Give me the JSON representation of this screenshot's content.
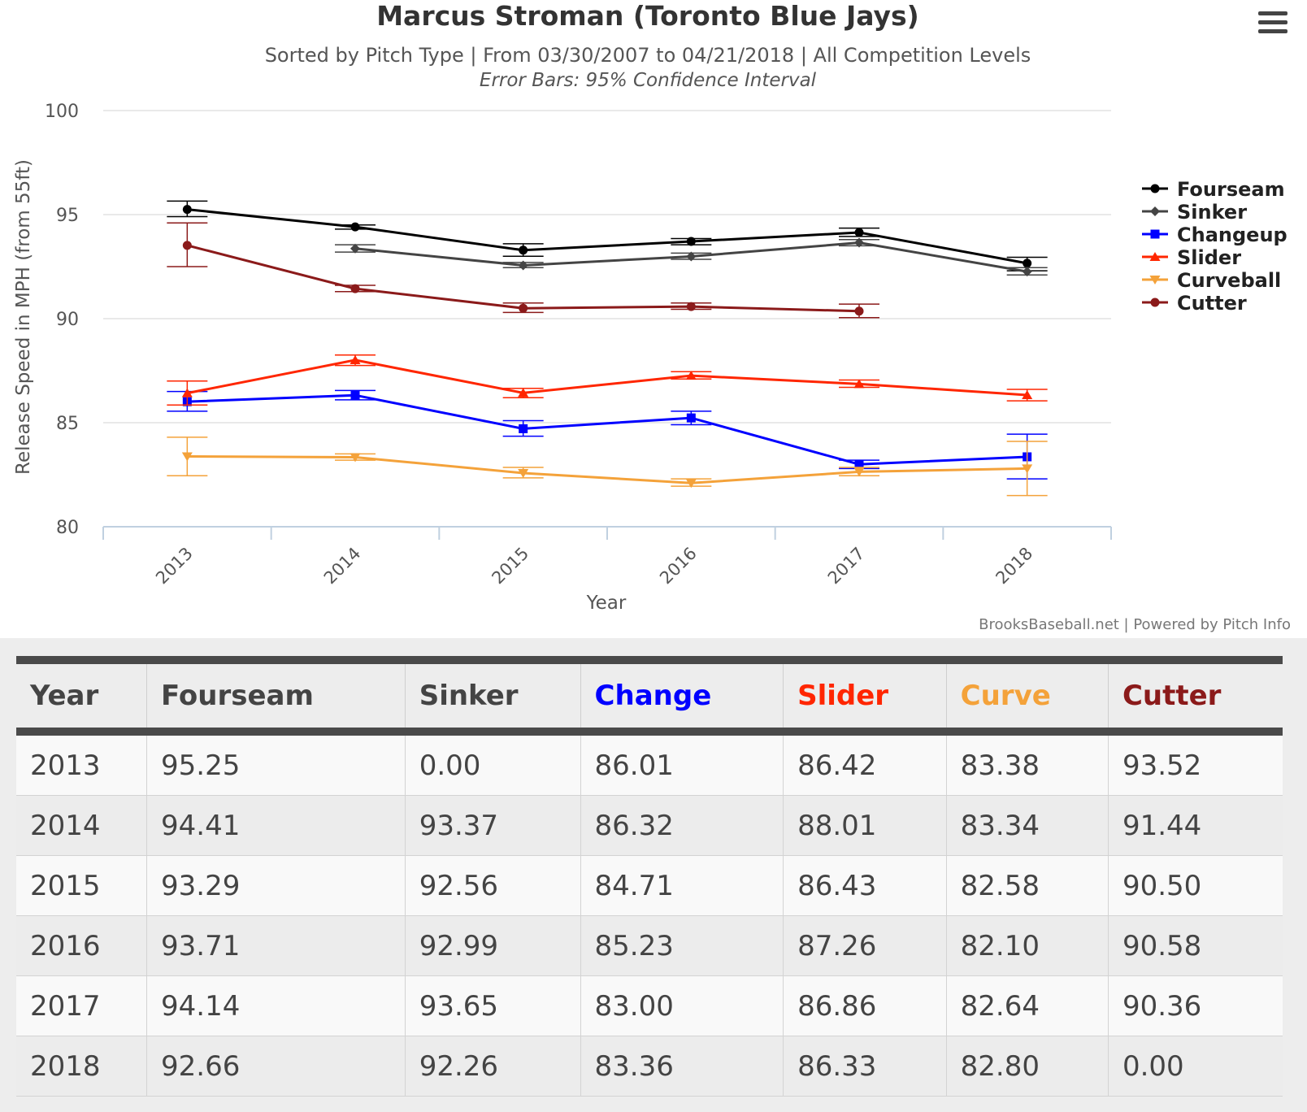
{
  "chart_data": {
    "type": "line",
    "title": "Marcus Stroman (Toronto Blue Jays)",
    "subtitle": "Sorted by Pitch Type | From 03/30/2007 to 04/21/2018 | All Competition Levels",
    "subtitle2": "Error Bars: 95% Confidence Interval",
    "xlabel": "Year",
    "ylabel": "Release Speed in MPH (from 55ft)",
    "credits": "BrooksBaseball.net | Powered by Pitch Info",
    "categories": [
      "2013",
      "2014",
      "2015",
      "2016",
      "2017",
      "2018"
    ],
    "yticks": [
      "80",
      "85",
      "90",
      "95",
      "100"
    ],
    "ylim": [
      80,
      100
    ],
    "grid": true,
    "legend_position": "right",
    "series": [
      {
        "name": "Fourseam",
        "color": "#000000",
        "marker": "circle",
        "values": [
          95.25,
          94.41,
          93.29,
          93.71,
          94.14,
          92.66
        ],
        "error_low": [
          94.9,
          94.3,
          93.0,
          93.55,
          93.95,
          92.3
        ],
        "error_high": [
          95.65,
          94.5,
          93.6,
          93.85,
          94.35,
          92.95
        ]
      },
      {
        "name": "Sinker",
        "color": "#444444",
        "marker": "diamond",
        "values": [
          null,
          93.37,
          92.56,
          92.99,
          93.65,
          92.26
        ],
        "error_low": [
          null,
          93.2,
          92.45,
          92.85,
          93.5,
          92.1
        ],
        "error_high": [
          null,
          93.55,
          92.7,
          93.15,
          93.8,
          92.45
        ]
      },
      {
        "name": "Changeup",
        "color": "#0000ff",
        "marker": "square",
        "values": [
          86.01,
          86.32,
          84.71,
          85.23,
          83.0,
          83.36
        ],
        "error_low": [
          85.55,
          86.1,
          84.35,
          84.9,
          82.8,
          82.3
        ],
        "error_high": [
          86.5,
          86.55,
          85.1,
          85.55,
          83.2,
          84.45
        ]
      },
      {
        "name": "Slider",
        "color": "#ff2600",
        "marker": "triangle",
        "values": [
          86.42,
          88.01,
          86.43,
          87.26,
          86.86,
          86.33
        ],
        "error_low": [
          85.85,
          87.75,
          86.2,
          87.1,
          86.7,
          86.05
        ],
        "error_high": [
          87.0,
          88.25,
          86.65,
          87.45,
          87.05,
          86.6
        ]
      },
      {
        "name": "Curveball",
        "color": "#f4a23a",
        "marker": "triangle-down",
        "values": [
          83.38,
          83.34,
          82.58,
          82.1,
          82.64,
          82.8
        ],
        "error_low": [
          82.45,
          83.2,
          82.35,
          81.95,
          82.45,
          81.5
        ],
        "error_high": [
          84.3,
          83.5,
          82.85,
          82.3,
          82.85,
          84.1
        ]
      },
      {
        "name": "Cutter",
        "color": "#8b1a1a",
        "marker": "circle",
        "values": [
          93.52,
          91.44,
          90.5,
          90.58,
          90.36,
          null
        ],
        "error_low": [
          92.5,
          91.3,
          90.3,
          90.45,
          90.05,
          null
        ],
        "error_high": [
          94.6,
          91.6,
          90.75,
          90.75,
          90.7,
          null
        ]
      }
    ]
  },
  "menu": {
    "icon": "hamburger-menu-icon"
  },
  "table": {
    "headers": [
      {
        "label": "Year",
        "color": "#444444"
      },
      {
        "label": "Fourseam",
        "color": "#444444"
      },
      {
        "label": "Sinker",
        "color": "#444444"
      },
      {
        "label": "Change",
        "color": "#0000ff"
      },
      {
        "label": "Slider",
        "color": "#ff2600"
      },
      {
        "label": "Curve",
        "color": "#f4a23a"
      },
      {
        "label": "Cutter",
        "color": "#8b1a1a"
      }
    ],
    "rows": [
      [
        "2013",
        "95.25",
        "0.00",
        "86.01",
        "86.42",
        "83.38",
        "93.52"
      ],
      [
        "2014",
        "94.41",
        "93.37",
        "86.32",
        "88.01",
        "83.34",
        "91.44"
      ],
      [
        "2015",
        "93.29",
        "92.56",
        "84.71",
        "86.43",
        "82.58",
        "90.50"
      ],
      [
        "2016",
        "93.71",
        "92.99",
        "85.23",
        "87.26",
        "82.10",
        "90.58"
      ],
      [
        "2017",
        "94.14",
        "93.65",
        "83.00",
        "86.86",
        "82.64",
        "90.36"
      ],
      [
        "2018",
        "92.66",
        "92.26",
        "83.36",
        "86.33",
        "82.80",
        "0.00"
      ]
    ]
  }
}
